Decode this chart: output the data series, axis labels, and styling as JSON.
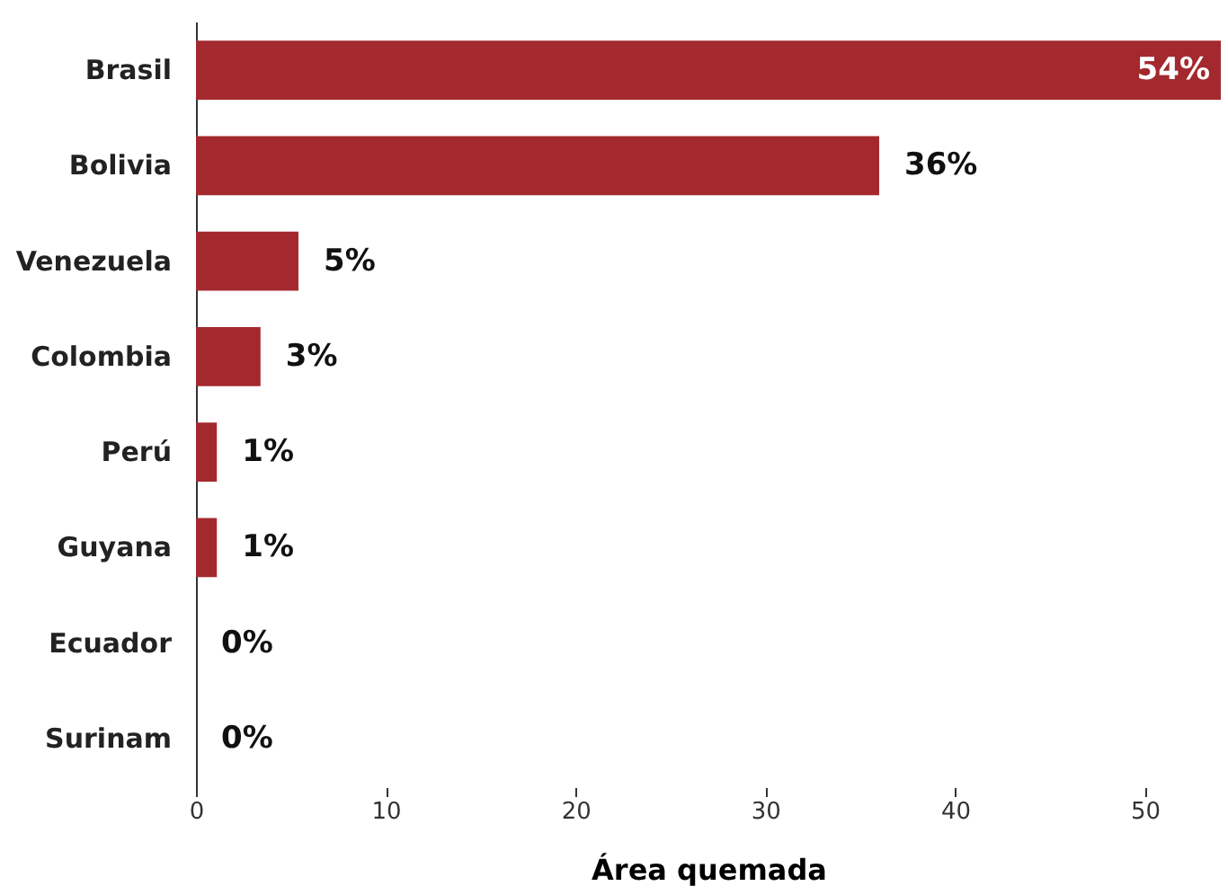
{
  "chart_data": {
    "type": "bar",
    "orientation": "horizontal",
    "xlabel": "Área quemada",
    "categories": [
      "Brasil",
      "Bolivia",
      "Venezuela",
      "Colombia",
      "Perú",
      "Guyana",
      "Ecuador",
      "Surinam"
    ],
    "values": [
      54,
      36,
      5.4,
      3.4,
      1.1,
      1.1,
      0,
      0
    ],
    "value_labels": [
      "54%",
      "36%",
      "5%",
      "3%",
      "1%",
      "1%",
      "0%",
      "0%"
    ],
    "color": "#a3292e",
    "xlim": [
      0,
      54
    ],
    "xticks": [
      0,
      10,
      20,
      30,
      40,
      50
    ],
    "grid": false
  }
}
